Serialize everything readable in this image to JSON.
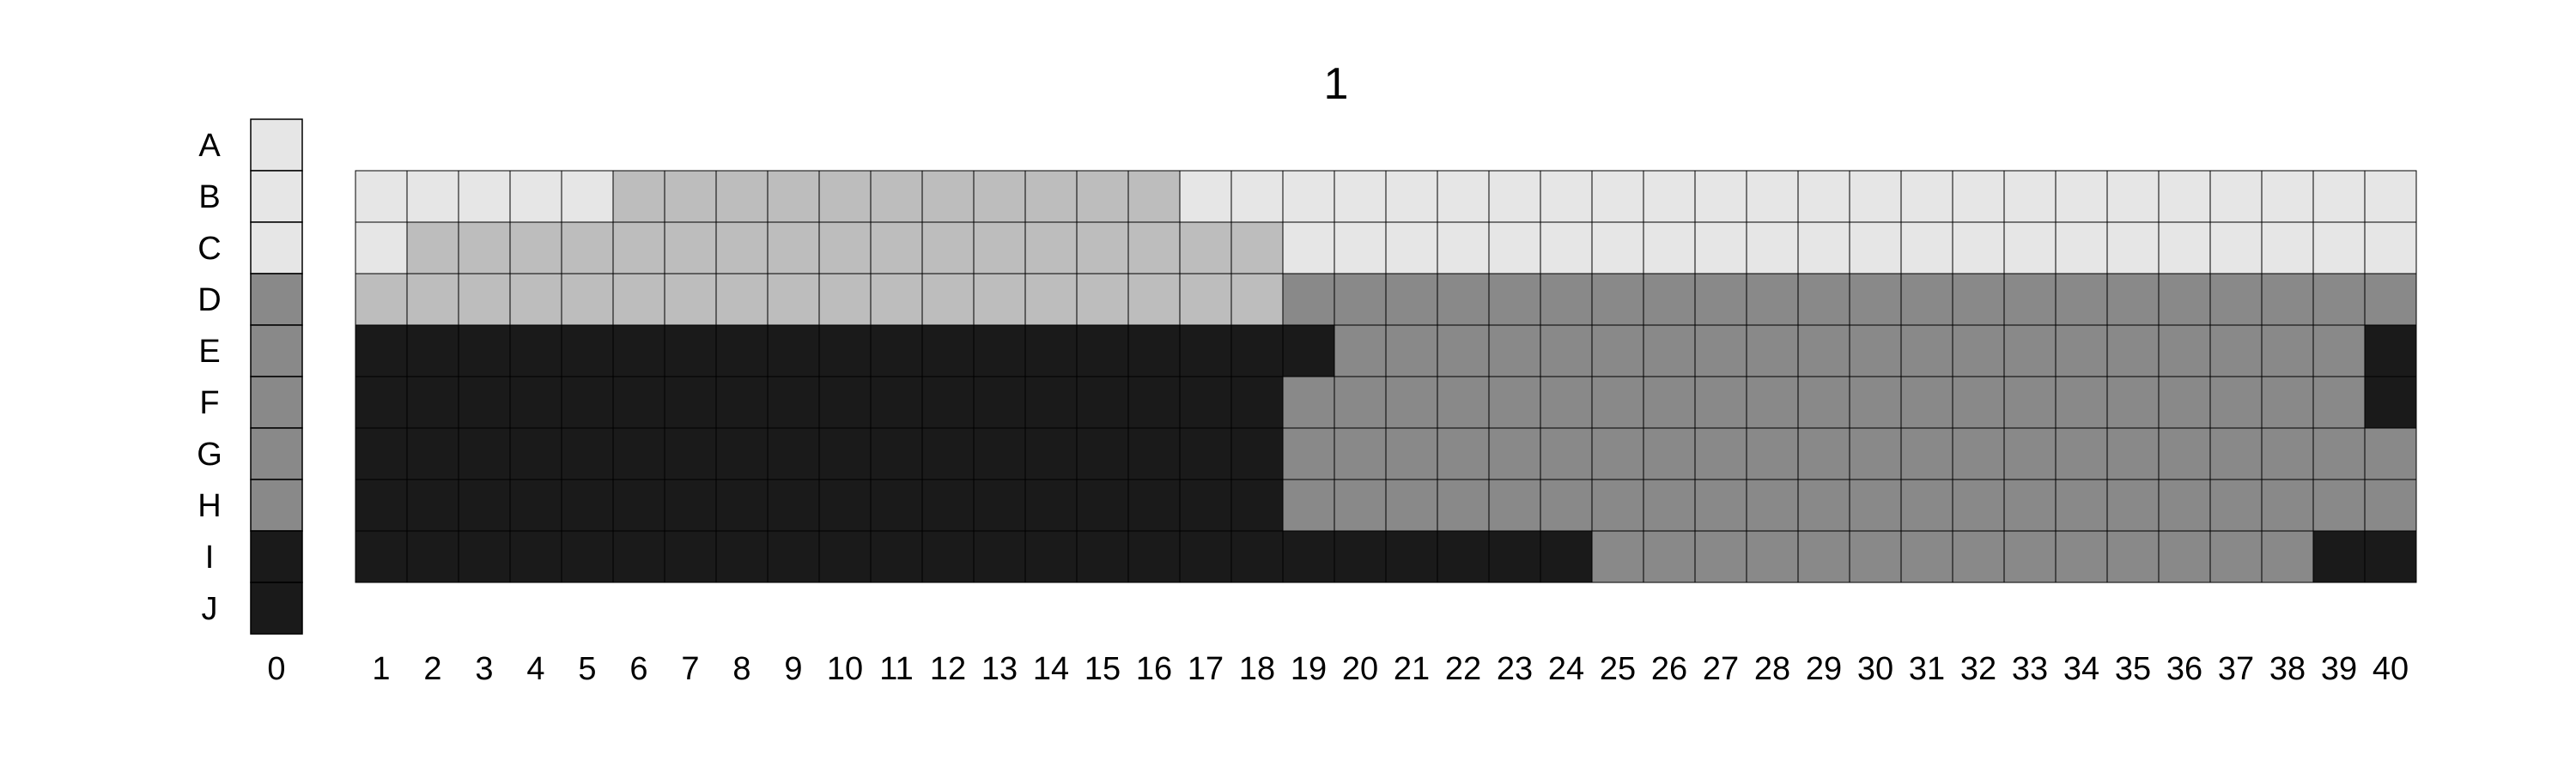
{
  "title": "1",
  "colors": {
    "light": "#e6e6e6",
    "mid": "#bdbdbd",
    "dark": "#898989",
    "black": "#1a1a1a",
    "border": "#000000"
  },
  "chart_data": {
    "type": "heatmap",
    "title": "1",
    "row_labels": [
      "A",
      "B",
      "C",
      "D",
      "E",
      "F",
      "G",
      "H",
      "I",
      "J"
    ],
    "reference_column": {
      "label": "0",
      "cells": [
        "light",
        "light",
        "light",
        "dark",
        "dark",
        "dark",
        "dark",
        "dark",
        "black",
        "black"
      ]
    },
    "columns": [
      "1",
      "2",
      "3",
      "4",
      "5",
      "6",
      "7",
      "8",
      "9",
      "10",
      "11",
      "12",
      "13",
      "14",
      "15",
      "16",
      "17",
      "18",
      "19",
      "20",
      "21",
      "22",
      "23",
      "24",
      "25",
      "26",
      "27",
      "28",
      "29",
      "30",
      "31",
      "32",
      "33",
      "34",
      "35",
      "36",
      "37",
      "38",
      "39",
      "40"
    ],
    "matrix_rows": [
      "B",
      "C",
      "D",
      "E",
      "F",
      "G",
      "H",
      "I"
    ],
    "matrix": [
      [
        "light",
        "light",
        "light",
        "light",
        "light",
        "mid",
        "mid",
        "mid",
        "mid",
        "mid",
        "mid",
        "mid",
        "mid",
        "mid",
        "mid",
        "mid",
        "light",
        "light",
        "light",
        "light",
        "light",
        "light",
        "light",
        "light",
        "light",
        "light",
        "light",
        "light",
        "light",
        "light",
        "light",
        "light",
        "light",
        "light",
        "light",
        "light",
        "light",
        "light",
        "light",
        "light"
      ],
      [
        "light",
        "mid",
        "mid",
        "mid",
        "mid",
        "mid",
        "mid",
        "mid",
        "mid",
        "mid",
        "mid",
        "mid",
        "mid",
        "mid",
        "mid",
        "mid",
        "mid",
        "mid",
        "light",
        "light",
        "light",
        "light",
        "light",
        "light",
        "light",
        "light",
        "light",
        "light",
        "light",
        "light",
        "light",
        "light",
        "light",
        "light",
        "light",
        "light",
        "light",
        "light",
        "light",
        "light"
      ],
      [
        "mid",
        "mid",
        "mid",
        "mid",
        "mid",
        "mid",
        "mid",
        "mid",
        "mid",
        "mid",
        "mid",
        "mid",
        "mid",
        "mid",
        "mid",
        "mid",
        "mid",
        "mid",
        "dark",
        "dark",
        "dark",
        "dark",
        "dark",
        "dark",
        "dark",
        "dark",
        "dark",
        "dark",
        "dark",
        "dark",
        "dark",
        "dark",
        "dark",
        "dark",
        "dark",
        "dark",
        "dark",
        "dark",
        "dark",
        "dark"
      ],
      [
        "black",
        "black",
        "black",
        "black",
        "black",
        "black",
        "black",
        "black",
        "black",
        "black",
        "black",
        "black",
        "black",
        "black",
        "black",
        "black",
        "black",
        "black",
        "black",
        "dark",
        "dark",
        "dark",
        "dark",
        "dark",
        "dark",
        "dark",
        "dark",
        "dark",
        "dark",
        "dark",
        "dark",
        "dark",
        "dark",
        "dark",
        "dark",
        "dark",
        "dark",
        "dark",
        "dark",
        "black"
      ],
      [
        "black",
        "black",
        "black",
        "black",
        "black",
        "black",
        "black",
        "black",
        "black",
        "black",
        "black",
        "black",
        "black",
        "black",
        "black",
        "black",
        "black",
        "black",
        "dark",
        "dark",
        "dark",
        "dark",
        "dark",
        "dark",
        "dark",
        "dark",
        "dark",
        "dark",
        "dark",
        "dark",
        "dark",
        "dark",
        "dark",
        "dark",
        "dark",
        "dark",
        "dark",
        "dark",
        "dark",
        "black"
      ],
      [
        "black",
        "black",
        "black",
        "black",
        "black",
        "black",
        "black",
        "black",
        "black",
        "black",
        "black",
        "black",
        "black",
        "black",
        "black",
        "black",
        "black",
        "black",
        "dark",
        "dark",
        "dark",
        "dark",
        "dark",
        "dark",
        "dark",
        "dark",
        "dark",
        "dark",
        "dark",
        "dark",
        "dark",
        "dark",
        "dark",
        "dark",
        "dark",
        "dark",
        "dark",
        "dark",
        "dark",
        "dark"
      ],
      [
        "black",
        "black",
        "black",
        "black",
        "black",
        "black",
        "black",
        "black",
        "black",
        "black",
        "black",
        "black",
        "black",
        "black",
        "black",
        "black",
        "black",
        "black",
        "dark",
        "dark",
        "dark",
        "dark",
        "dark",
        "dark",
        "dark",
        "dark",
        "dark",
        "dark",
        "dark",
        "dark",
        "dark",
        "dark",
        "dark",
        "dark",
        "dark",
        "dark",
        "dark",
        "dark",
        "dark",
        "dark"
      ],
      [
        "black",
        "black",
        "black",
        "black",
        "black",
        "black",
        "black",
        "black",
        "black",
        "black",
        "black",
        "black",
        "black",
        "black",
        "black",
        "black",
        "black",
        "black",
        "black",
        "black",
        "black",
        "black",
        "black",
        "black",
        "dark",
        "dark",
        "dark",
        "dark",
        "dark",
        "dark",
        "dark",
        "dark",
        "dark",
        "dark",
        "dark",
        "dark",
        "dark",
        "dark",
        "black",
        "black"
      ]
    ]
  }
}
